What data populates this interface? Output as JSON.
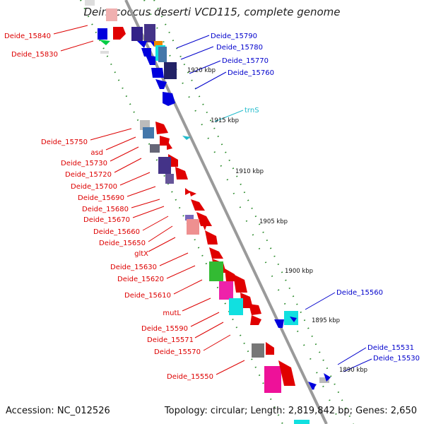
{
  "header": {
    "title": "Deinococcus deserti VCD115, complete genome"
  },
  "footer": {
    "accession": "Accession: NC_012526",
    "summary": "Topology: circular; Length: 2,819,842 bp; Genes: 2,650"
  },
  "colors": {
    "left_label": "#dd0000",
    "right_label": "#0000cc",
    "trna_label": "#22bbcc",
    "backbone": "#999999",
    "axis_dots": "#228822"
  },
  "scale_ticks": [
    "1920 kbp",
    "1915 kbp",
    "1910 kbp",
    "1905 kbp",
    "1900 kbp",
    "1895 kbp",
    "1890 kbp"
  ],
  "left_labels": [
    "Deide_15840",
    "Deide_15830",
    "Deide_15750",
    "asd",
    "Deide_15730",
    "Deide_15720",
    "Deide_15700",
    "Deide_15690",
    "Deide_15680",
    "Deide_15670",
    "Deide_15660",
    "Deide_15650",
    "gltX",
    "Deide_15630",
    "Deide_15620",
    "Deide_15610",
    "mutL",
    "Deide_15590",
    "Deide_15571",
    "Deide_15570",
    "Deide_15550"
  ],
  "right_labels": [
    "Deide_15790",
    "Deide_15780",
    "Deide_15770",
    "Deide_15760",
    "trnS",
    "Deide_15560",
    "Deide_15531",
    "Deide_15530"
  ]
}
